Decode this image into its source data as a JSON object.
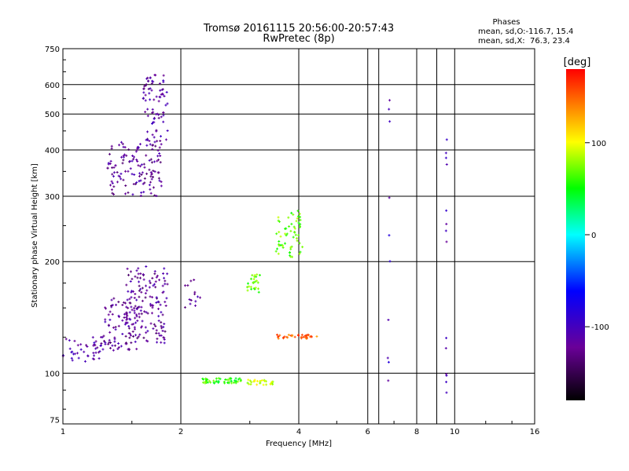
{
  "chart_data": {
    "type": "scatter",
    "title": "Tromsø 20161115 20:56:00-20:57:43",
    "subtitle": "RwPretec (8p)",
    "xlabel": "Frequency [MHz]",
    "ylabel": "Stationary phase Virtual Height [km]",
    "x_scale": "log",
    "y_scale": "log",
    "xlim": [
      1,
      16
    ],
    "ylim": [
      73,
      750
    ],
    "x_ticks": [
      1,
      2,
      4,
      6,
      8,
      10,
      16
    ],
    "y_ticks": [
      75,
      100,
      200,
      300,
      400,
      500,
      600,
      750
    ],
    "grid": true,
    "x_grid_lines": [
      2,
      4,
      6,
      6.4,
      8,
      9,
      10
    ],
    "y_grid_lines": [
      100,
      200,
      300,
      400,
      500,
      600
    ],
    "colorbar": {
      "label": "[deg]",
      "range": [
        -180,
        180
      ],
      "ticks": [
        -100,
        0,
        100
      ],
      "tick_labels": [
        "-100",
        "0",
        "100"
      ],
      "colors": [
        "#000000",
        "#6a0098",
        "#0000ff",
        "#00ffff",
        "#00ff00",
        "#ffff00",
        "#ff0000"
      ]
    },
    "annotation": {
      "title": "Phases",
      "line1": "mean, sd,O:-116.7, 15.4",
      "line2": "mean, sd,X:  76.3, 23.4"
    },
    "clusters": [
      {
        "x_range": [
          1.0,
          1.25
        ],
        "y_range": [
          106,
          125
        ],
        "phase": -110,
        "count": 40
      },
      {
        "x_range": [
          1.25,
          1.55
        ],
        "y_range": [
          115,
          160
        ],
        "phase": -120,
        "count": 90
      },
      {
        "x_range": [
          1.45,
          1.85
        ],
        "y_range": [
          120,
          195
        ],
        "phase": -120,
        "count": 150
      },
      {
        "x_range": [
          1.3,
          1.8
        ],
        "y_range": [
          300,
          420
        ],
        "phase": -120,
        "count": 130
      },
      {
        "x_range": [
          1.6,
          1.85
        ],
        "y_range": [
          420,
          640
        ],
        "phase": -115,
        "count": 80
      },
      {
        "x_range": [
          2.05,
          2.25
        ],
        "y_range": [
          150,
          180
        ],
        "phase": -120,
        "count": 14
      },
      {
        "x_range": [
          2.25,
          2.85
        ],
        "y_range": [
          94,
          97
        ],
        "phase": 60,
        "count": 55
      },
      {
        "x_range": [
          2.95,
          3.45
        ],
        "y_range": [
          93,
          96
        ],
        "phase": 90,
        "count": 30
      },
      {
        "x_range": [
          2.95,
          3.2
        ],
        "y_range": [
          165,
          185
        ],
        "phase": 70,
        "count": 25
      },
      {
        "x_range": [
          3.5,
          4.1
        ],
        "y_range": [
          205,
          275
        ],
        "phase": 70,
        "count": 60
      },
      {
        "x_range": [
          3.5,
          4.45
        ],
        "y_range": [
          124,
          127
        ],
        "phase": 150,
        "count": 35
      },
      {
        "x_range": [
          6.75,
          6.85
        ],
        "y_range": [
          95,
          560
        ],
        "phase": -100,
        "count": 10
      },
      {
        "x_range": [
          9.5,
          9.55
        ],
        "y_range": [
          80,
          505
        ],
        "phase": -110,
        "count": 14
      }
    ]
  }
}
